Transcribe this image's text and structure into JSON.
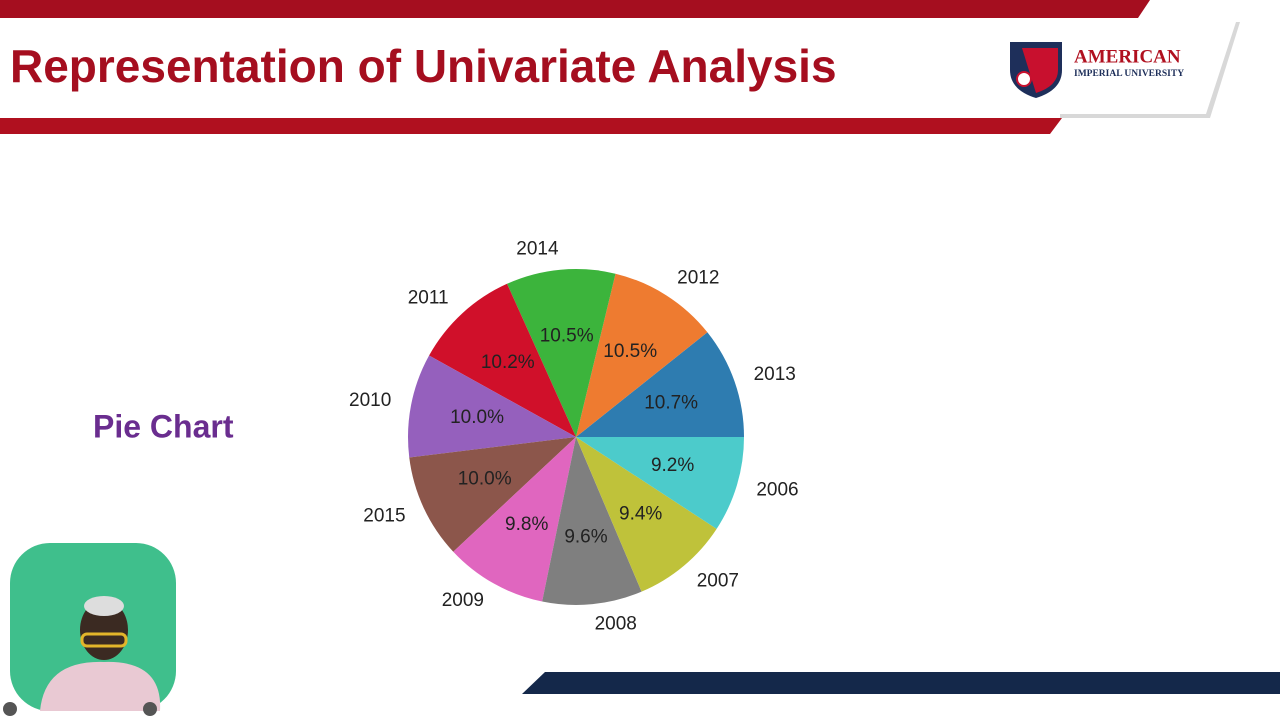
{
  "slide": {
    "title": "Representation of Univariate Analysis",
    "logo_name": "AMERICAN",
    "logo_subname": "IMPERIAL UNIVERSITY",
    "side_label": "Pie Chart"
  },
  "chart_data": {
    "type": "pie",
    "categories": [
      "2013",
      "2012",
      "2014",
      "2011",
      "2010",
      "2015",
      "2009",
      "2008",
      "2007",
      "2006"
    ],
    "values": [
      10.7,
      10.5,
      10.5,
      10.2,
      10.0,
      10.0,
      9.8,
      9.6,
      9.4,
      9.2
    ],
    "value_labels": [
      "10.7%",
      "10.5%",
      "10.5%",
      "10.2%",
      "10.0%",
      "10.0%",
      "9.8%",
      "9.6%",
      "9.4%",
      "9.2%"
    ],
    "colors": [
      "#2e7cb0",
      "#ee7b30",
      "#3cb43c",
      "#d0102a",
      "#9560bd",
      "#8c564b",
      "#e066bf",
      "#7f7f7f",
      "#bfc23a",
      "#4ccbcb"
    ]
  }
}
